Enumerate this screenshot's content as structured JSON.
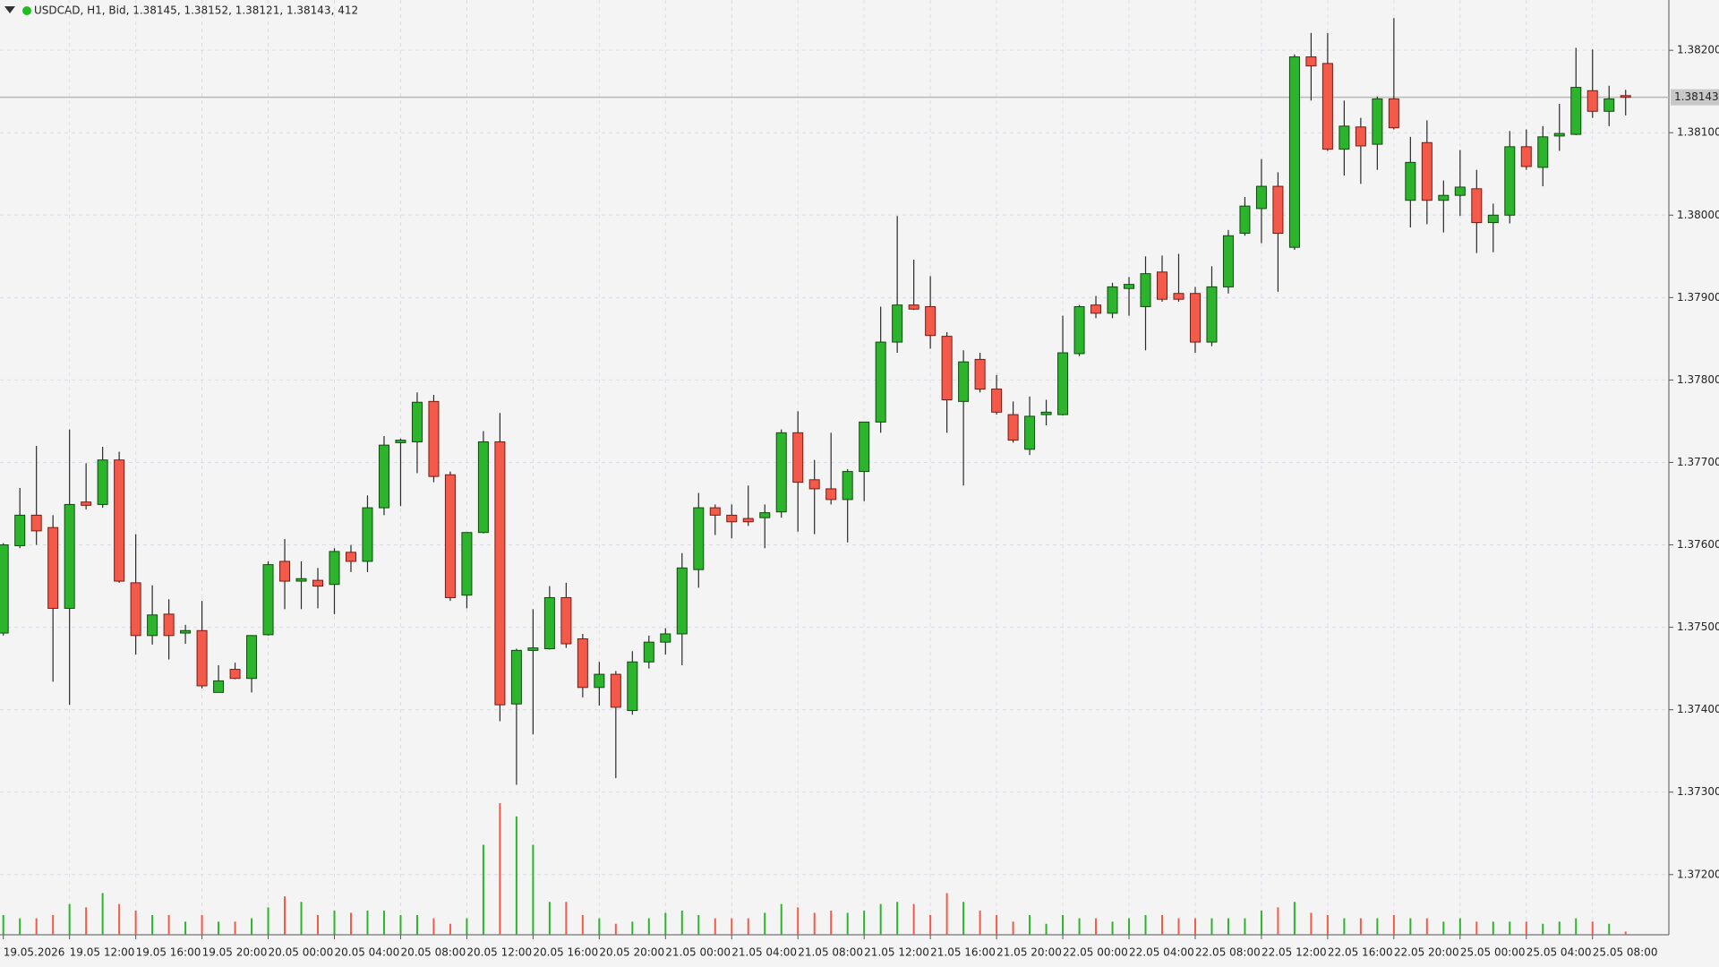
{
  "chart_data": {
    "type": "candlestick",
    "title": "USDCAD, H1, Bid, 1.38145, 1.38152, 1.38121, 1.38143, 412",
    "up_color": "#2cb52c",
    "down_color": "#f45a4a",
    "grid": true,
    "bid_line": 1.38143,
    "ylim": [
      1.37127,
      1.38261
    ],
    "yticks": [
      {
        "value": 1.372,
        "label": "1.37200"
      },
      {
        "value": 1.373,
        "label": "1.37300"
      },
      {
        "value": 1.374,
        "label": "1.37400"
      },
      {
        "value": 1.375,
        "label": "1.37500"
      },
      {
        "value": 1.376,
        "label": "1.37600"
      },
      {
        "value": 1.377,
        "label": "1.37700"
      },
      {
        "value": 1.378,
        "label": "1.37800"
      },
      {
        "value": 1.379,
        "label": "1.37900"
      },
      {
        "value": 1.38,
        "label": "1.38000"
      },
      {
        "value": 1.381,
        "label": "1.38100"
      },
      {
        "value": 1.382,
        "label": "1.38200"
      }
    ],
    "categories": [
      "19.05.2026",
      null,
      null,
      null,
      "19.05 12:00",
      null,
      null,
      null,
      "19.05 16:00",
      null,
      null,
      null,
      "19.05 20:00",
      null,
      null,
      null,
      "20.05 00:00",
      null,
      null,
      null,
      "20.05 04:00",
      null,
      null,
      null,
      "20.05 08:00",
      null,
      null,
      null,
      "20.05 12:00",
      null,
      null,
      null,
      "20.05 16:00",
      null,
      null,
      null,
      "20.05 20:00",
      null,
      null,
      null,
      "21.05 00:00",
      null,
      null,
      null,
      "21.05 04:00",
      null,
      null,
      null,
      "21.05 08:00",
      null,
      null,
      null,
      "21.05 12:00",
      null,
      null,
      null,
      "21.05 16:00",
      null,
      null,
      null,
      "21.05 20:00",
      null,
      null,
      null,
      "22.05 00:00",
      null,
      null,
      null,
      "22.05 04:00",
      null,
      null,
      null,
      "22.05 08:00",
      null,
      null,
      null,
      "22.05 12:00",
      null,
      null,
      null,
      "22.05 16:00",
      null,
      null,
      null,
      "22.05 20:00",
      null,
      null,
      null,
      "25.05 00:00",
      null,
      null,
      null,
      "25.05 04:00",
      null,
      null,
      null,
      "25.05 08:00",
      null,
      null
    ],
    "open": [
      1.37493,
      1.37599,
      1.37636,
      1.37621,
      1.37523,
      1.37652,
      1.37649,
      1.37703,
      1.37554,
      1.3749,
      1.37516,
      1.37493,
      1.37496,
      1.37421,
      1.37449,
      1.37438,
      1.37491,
      1.3758,
      1.37556,
      1.37557,
      1.37552,
      1.37591,
      1.3758,
      1.37645,
      1.37724,
      1.37725,
      1.37774,
      1.37685,
      1.37539,
      1.37615,
      1.37725,
      1.37407,
      1.37472,
      1.37474,
      1.37536,
      1.37486,
      1.37427,
      1.37443,
      1.37399,
      1.37458,
      1.37482,
      1.37492,
      1.3757,
      1.37645,
      1.37636,
      1.37632,
      1.37633,
      1.3764,
      1.37736,
      1.37679,
      1.37668,
      1.37655,
      1.37689,
      1.37749,
      1.37846,
      1.37891,
      1.37889,
      1.37853,
      1.37774,
      1.37825,
      1.37789,
      1.37758,
      1.37716,
      1.37758,
      1.37758,
      1.37832,
      1.37891,
      1.37881,
      1.37911,
      1.37889,
      1.37931,
      1.37905,
      1.37905,
      1.37846,
      1.37913,
      1.37978,
      1.38008,
      1.38035,
      1.37961,
      1.38192,
      1.38184,
      1.3808,
      1.38107,
      1.38086,
      1.38141,
      1.38018,
      1.38088,
      1.38018,
      1.38024,
      1.38032,
      1.37991,
      1.38,
      1.38083,
      1.38058,
      1.38096,
      1.38098,
      1.38151,
      1.38126,
      1.38145
    ],
    "high": [
      1.37602,
      1.37669,
      1.3772,
      1.37636,
      1.3774,
      1.37699,
      1.37719,
      1.37713,
      1.37613,
      1.37551,
      1.37534,
      1.37503,
      1.37532,
      1.37454,
      1.37457,
      1.3749,
      1.3758,
      1.37607,
      1.3758,
      1.37572,
      1.37596,
      1.376,
      1.3766,
      1.37732,
      1.37729,
      1.37785,
      1.37782,
      1.37689,
      1.37615,
      1.37738,
      1.3776,
      1.37474,
      1.37522,
      1.3755,
      1.37554,
      1.37492,
      1.37458,
      1.37447,
      1.37471,
      1.3749,
      1.37499,
      1.3759,
      1.37663,
      1.37649,
      1.37649,
      1.37672,
      1.37649,
      1.3774,
      1.37762,
      1.37703,
      1.37736,
      1.37692,
      1.37749,
      1.37889,
      1.37999,
      1.37946,
      1.37926,
      1.37858,
      1.37836,
      1.37833,
      1.37806,
      1.37774,
      1.3778,
      1.37776,
      1.37878,
      1.37891,
      1.37902,
      1.37918,
      1.37925,
      1.3795,
      1.37951,
      1.37953,
      1.37913,
      1.37938,
      1.37982,
      1.38022,
      1.38068,
      1.38052,
      1.38195,
      1.38221,
      1.38221,
      1.38139,
      1.38118,
      1.38144,
      1.38239,
      1.38095,
      1.38115,
      1.38042,
      1.38079,
      1.38055,
      1.38014,
      1.38102,
      1.38104,
      1.38108,
      1.38135,
      1.38203,
      1.38201,
      1.38157,
      1.38152
    ],
    "low": [
      1.3749,
      1.37596,
      1.376,
      1.37434,
      1.37406,
      1.37643,
      1.37645,
      1.37554,
      1.37467,
      1.37479,
      1.37461,
      1.3748,
      1.37426,
      1.37421,
      1.37437,
      1.37421,
      1.3749,
      1.37522,
      1.37522,
      1.37523,
      1.37516,
      1.37567,
      1.37567,
      1.37636,
      1.37647,
      1.37687,
      1.37676,
      1.37532,
      1.37523,
      1.37614,
      1.37386,
      1.37309,
      1.3737,
      1.37473,
      1.37475,
      1.37415,
      1.37405,
      1.37317,
      1.37394,
      1.3745,
      1.37467,
      1.37454,
      1.37548,
      1.37612,
      1.37608,
      1.37623,
      1.37596,
      1.37633,
      1.37616,
      1.37613,
      1.37649,
      1.37603,
      1.37653,
      1.37736,
      1.37833,
      1.37885,
      1.37838,
      1.37736,
      1.37672,
      1.37785,
      1.37758,
      1.37724,
      1.37709,
      1.37745,
      1.37757,
      1.37829,
      1.37875,
      1.37875,
      1.37878,
      1.37836,
      1.37895,
      1.37895,
      1.37833,
      1.37841,
      1.37905,
      1.37975,
      1.37966,
      1.37907,
      1.37958,
      1.38139,
      1.38078,
      1.38048,
      1.38038,
      1.38055,
      1.38104,
      1.37985,
      1.37989,
      1.37979,
      1.37999,
      1.37954,
      1.37955,
      1.3799,
      1.38055,
      1.38035,
      1.38078,
      1.38097,
      1.38118,
      1.38108,
      1.38121
    ],
    "close": [
      1.376,
      1.37636,
      1.37617,
      1.37523,
      1.37649,
      1.37648,
      1.37703,
      1.37556,
      1.3749,
      1.37515,
      1.3749,
      1.37496,
      1.37429,
      1.37435,
      1.37438,
      1.3749,
      1.37576,
      1.37556,
      1.37559,
      1.3755,
      1.37592,
      1.3758,
      1.37645,
      1.37721,
      1.37727,
      1.37773,
      1.37683,
      1.37536,
      1.37615,
      1.37725,
      1.37406,
      1.37472,
      1.37475,
      1.37536,
      1.3748,
      1.37427,
      1.37443,
      1.37403,
      1.37458,
      1.37482,
      1.37492,
      1.37572,
      1.37645,
      1.37636,
      1.37628,
      1.37628,
      1.37639,
      1.37736,
      1.37676,
      1.37668,
      1.37655,
      1.37689,
      1.37749,
      1.37846,
      1.37891,
      1.37886,
      1.37854,
      1.37776,
      1.37822,
      1.37789,
      1.37761,
      1.37727,
      1.37756,
      1.37761,
      1.37833,
      1.37889,
      1.37881,
      1.37913,
      1.37916,
      1.37929,
      1.37898,
      1.37898,
      1.37846,
      1.37913,
      1.37975,
      1.38011,
      1.38035,
      1.37978,
      1.38192,
      1.38181,
      1.3808,
      1.38108,
      1.38084,
      1.38141,
      1.38106,
      1.38064,
      1.38018,
      1.38024,
      1.38034,
      1.37991,
      1.38,
      1.38083,
      1.38059,
      1.38095,
      1.38099,
      1.38155,
      1.38126,
      1.38141,
      1.38143
    ],
    "volume": [
      2520,
      2100,
      2100,
      2520,
      3920,
      3500,
      5320,
      3920,
      3080,
      2520,
      2520,
      1680,
      2520,
      1680,
      1680,
      2100,
      3500,
      4900,
      4200,
      2520,
      3080,
      2800,
      3080,
      3080,
      2520,
      2520,
      2100,
      1400,
      2100,
      11480,
      16800,
      15120,
      11480,
      4200,
      4200,
      2520,
      2100,
      1400,
      1680,
      2100,
      2800,
      3080,
      2520,
      2100,
      2100,
      2100,
      2800,
      3920,
      3500,
      2800,
      3080,
      2800,
      3080,
      3920,
      4200,
      3920,
      2520,
      5320,
      4200,
      3080,
      2520,
      1680,
      2520,
      1400,
      2520,
      2100,
      2100,
      1680,
      2100,
      2520,
      2520,
      2100,
      2100,
      2100,
      2100,
      2100,
      3080,
      3500,
      4200,
      2800,
      2520,
      2100,
      2100,
      2100,
      2520,
      2100,
      2100,
      1680,
      2100,
      1680,
      1680,
      1680,
      1680,
      1400,
      1680,
      2100,
      1680,
      1400,
      412
    ]
  }
}
